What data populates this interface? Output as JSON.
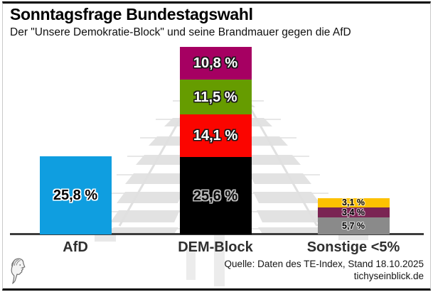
{
  "header": {
    "title": "Sonntagsfrage Bundestagswahl",
    "subtitle": "Der \"Unsere Demokratie-Block\" und seine Brandmauer gegen die AfD"
  },
  "footer": {
    "source_line1": "Quelle: Daten des TE-Index, Stand 18.10.2025",
    "source_line2": "tichyseinblick.de",
    "logo": "tichys-einblick-classical-head-logo"
  },
  "colors": {
    "axis": "#3d3d3d",
    "watermark_gray": "#e2e2e2",
    "frame_top_bottom": "#000000",
    "frame_sides": "#c9c9c9"
  },
  "chart_data": {
    "type": "bar",
    "stacked": true,
    "title": "Sonntagsfrage Bundestagswahl",
    "subtitle": "Der \"Unsere Demokratie-Block\" und seine Brandmauer gegen die AfD",
    "unit": "%",
    "decimal_separator": ",",
    "ylim": [
      0,
      62
    ],
    "grid": false,
    "legend": false,
    "background_watermark": "reichstag-dome",
    "categories": [
      "AfD",
      "DEM-Block",
      "Sonstige <5%"
    ],
    "bars": [
      {
        "category": "AfD",
        "total": 25.8,
        "segments": [
          {
            "value": 25.8,
            "label": "25,8 %",
            "color": "#0f9ee0",
            "label_color": "#000000",
            "label_outline": "#ffffff"
          }
        ]
      },
      {
        "category": "DEM-Block",
        "total": 62.0,
        "segments": [
          {
            "value": 10.8,
            "label": "10,8 %",
            "color": "#a60062",
            "label_color": "#ffffff",
            "label_outline": "#1a1a1a"
          },
          {
            "value": 11.5,
            "label": "11,5 %",
            "color": "#669c00",
            "label_color": "#ffffff",
            "label_outline": "#1a1a1a"
          },
          {
            "value": 14.1,
            "label": "14,1 %",
            "color": "#fb0500",
            "label_color": "#ffffff",
            "label_outline": "#1a1a1a"
          },
          {
            "value": 25.6,
            "label": "25,6 %",
            "color": "#000000",
            "label_color": "#0a0a0a",
            "label_outline": "#bdbdbd"
          }
        ]
      },
      {
        "category": "Sonstige <5%",
        "total": 12.2,
        "segments": [
          {
            "value": 3.1,
            "label": "3,1 %",
            "color": "#fdc101",
            "label_color": "#000000",
            "label_outline": "#ffe9a8"
          },
          {
            "value": 3.4,
            "label": "3,4 %",
            "color": "#7a2453",
            "label_color": "#000000",
            "label_outline": "#cfa8bf"
          },
          {
            "value": 5.7,
            "label": "5,7 %",
            "color": "#8a8a8a",
            "label_color": "#000000",
            "label_outline": "#d6d6d6"
          }
        ]
      }
    ]
  }
}
